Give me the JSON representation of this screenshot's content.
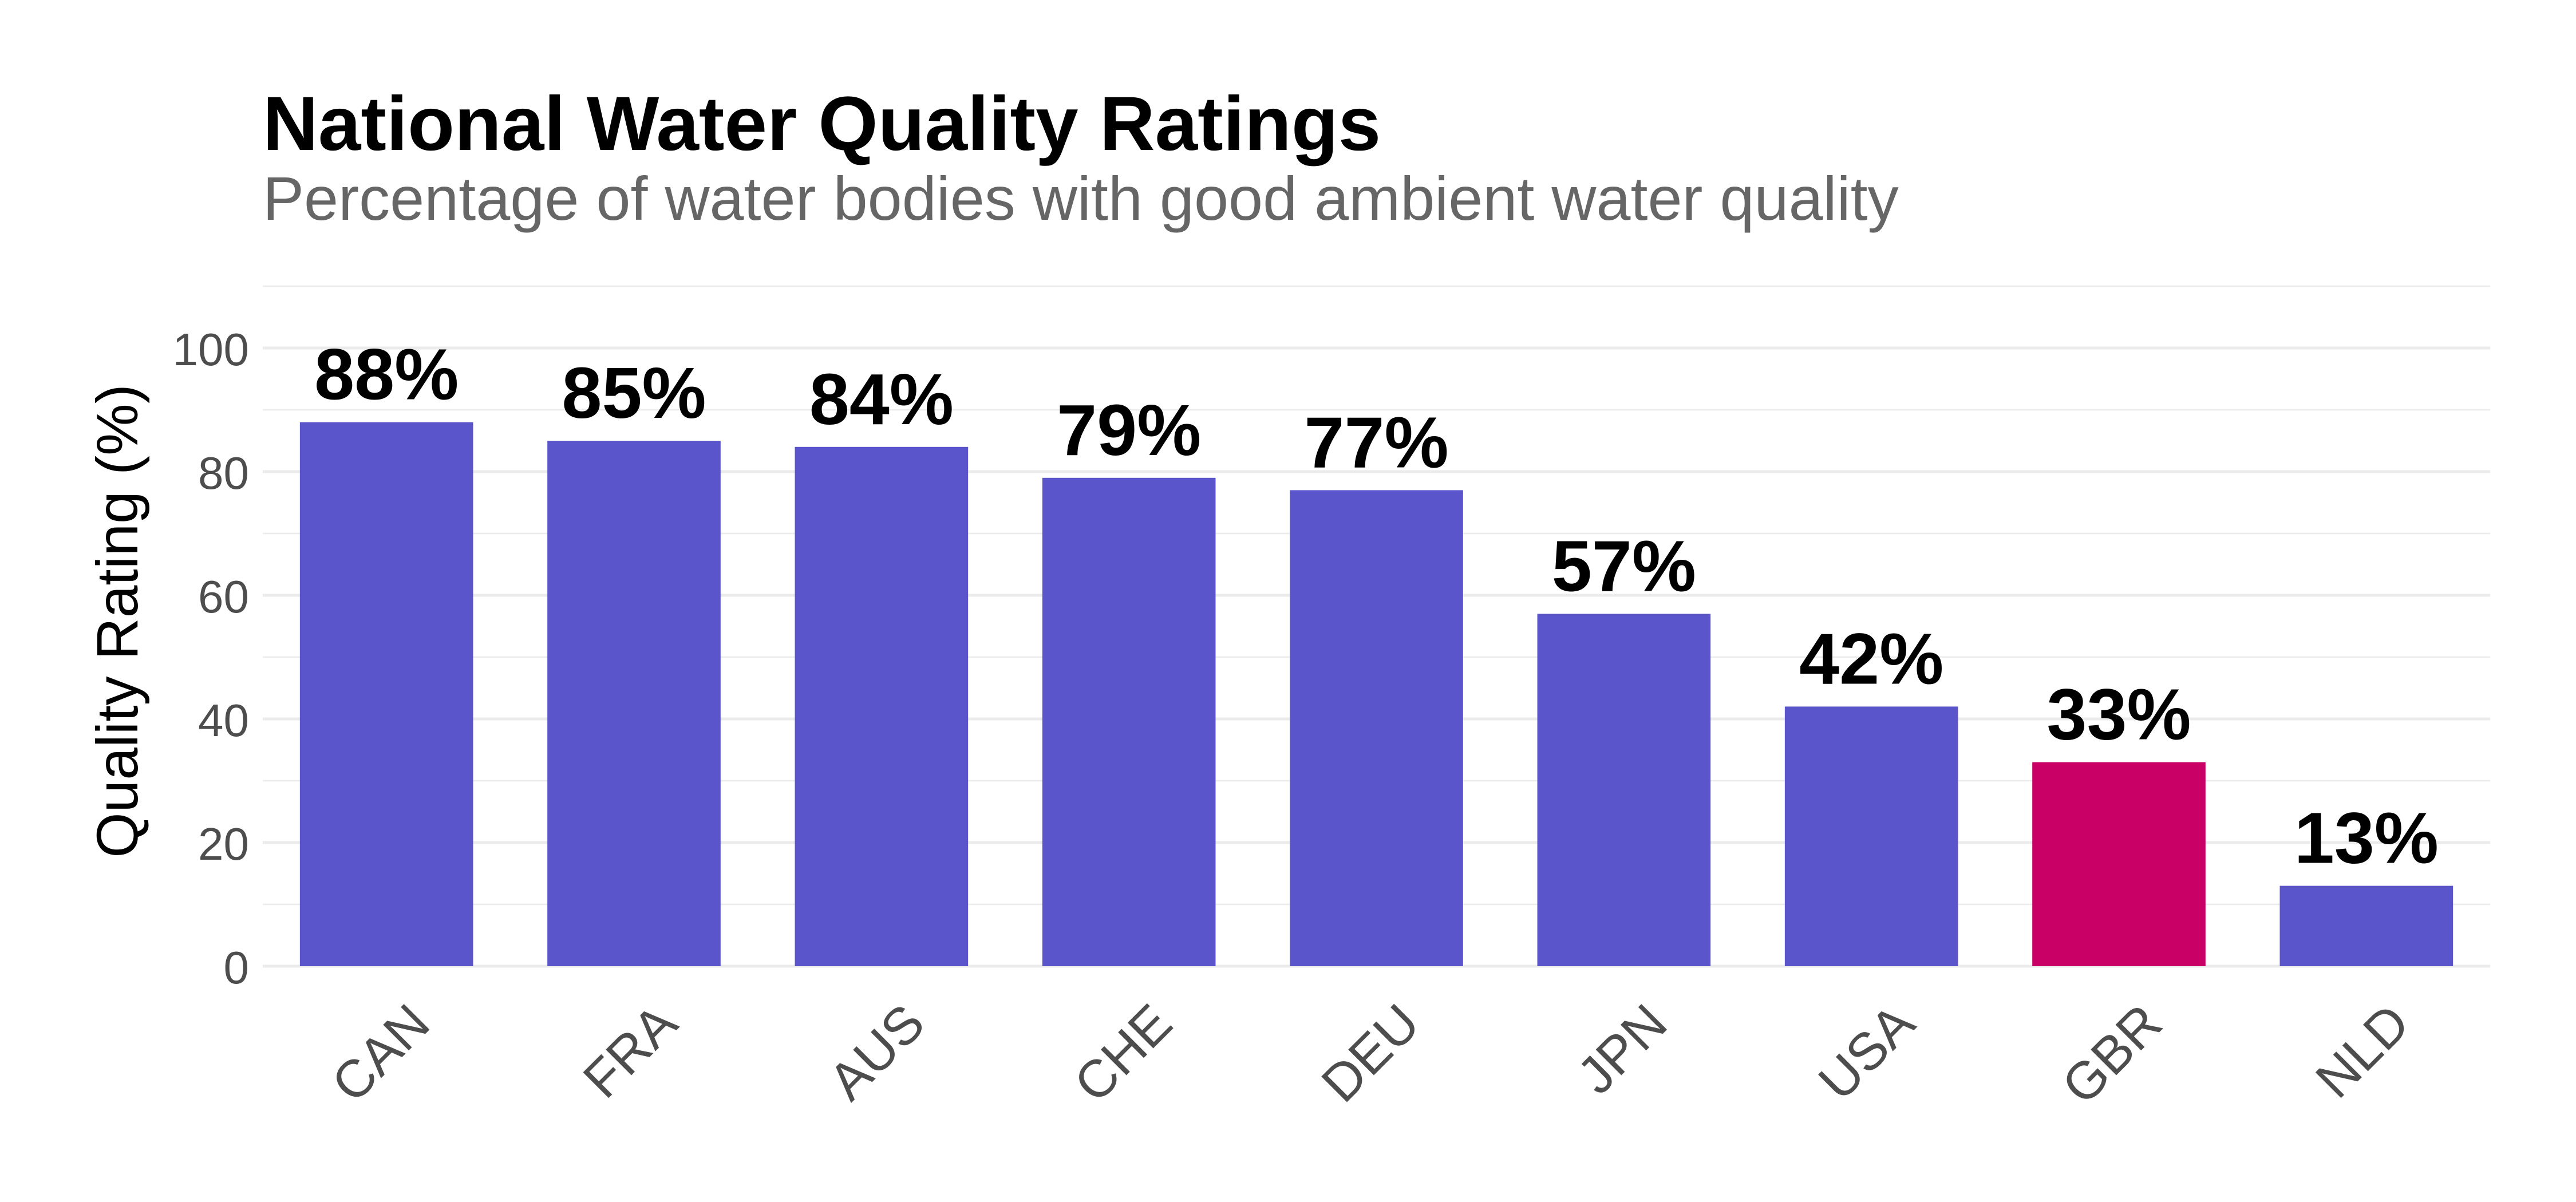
{
  "chart_data": {
    "type": "bar",
    "title": "National Water Quality Ratings",
    "subtitle": "Percentage of water bodies with good ambient water quality",
    "xlabel": "",
    "ylabel": "Quality Rating (%)",
    "ylim": [
      0,
      110
    ],
    "yticks": [
      0,
      20,
      40,
      60,
      80,
      100
    ],
    "grid": true,
    "legend": "none",
    "categories": [
      "CAN",
      "FRA",
      "AUS",
      "CHE",
      "DEU",
      "JPN",
      "USA",
      "GBR",
      "NLD"
    ],
    "values": [
      88,
      85,
      84,
      79,
      77,
      57,
      42,
      33,
      13
    ],
    "data_labels": [
      "88%",
      "85%",
      "84%",
      "79%",
      "77%",
      "57%",
      "42%",
      "33%",
      "13%"
    ],
    "highlight_category": "GBR",
    "colors": {
      "default_bar": "#5b55cc",
      "highlight_bar": "#c90066",
      "grid": "#ebebeb",
      "tick_text": "#4d4d4d",
      "subtitle_text": "#666666"
    }
  }
}
